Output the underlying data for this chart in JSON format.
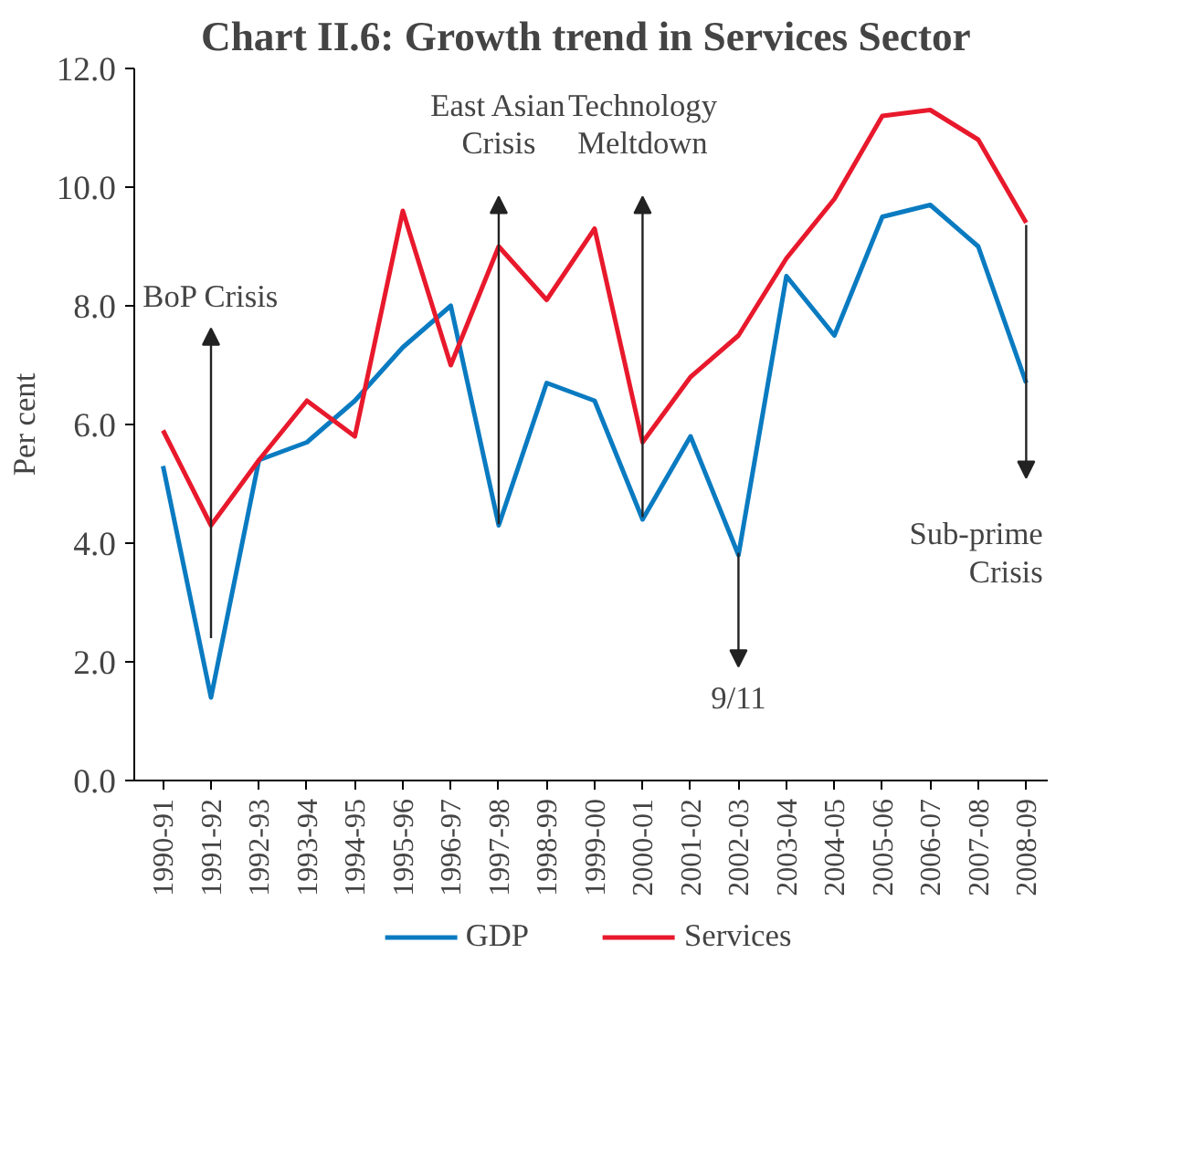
{
  "chart_data": {
    "type": "line",
    "title": "Chart  II.6: Growth trend in Services Sector",
    "ylabel": "Per cent",
    "categories": [
      "1990-91",
      "1991-92",
      "1992-93",
      "1993-94",
      "1994-95",
      "1995-96",
      "1996-97",
      "1997-98",
      "1998-99",
      "1999-00",
      "2000-01",
      "2001-02",
      "2002-03",
      "2003-04",
      "2004-05",
      "2005-06",
      "2006-07",
      "2007-08",
      "2008-09"
    ],
    "series": [
      {
        "name": "GDP",
        "color": "#0a7bc1",
        "values": [
          5.3,
          1.4,
          5.4,
          5.7,
          6.4,
          7.3,
          8.0,
          4.3,
          6.7,
          6.4,
          4.4,
          5.8,
          3.8,
          8.5,
          7.5,
          9.5,
          9.7,
          9.0,
          6.7
        ]
      },
      {
        "name": "Services",
        "color": "#e8192c",
        "values": [
          5.9,
          4.3,
          5.4,
          6.4,
          5.8,
          9.6,
          7.0,
          9.0,
          8.1,
          9.3,
          5.7,
          6.8,
          7.5,
          8.8,
          9.8,
          11.2,
          11.3,
          10.8,
          9.4
        ]
      }
    ],
    "ylim": [
      0,
      12
    ],
    "yticks": [
      {
        "value": 0,
        "label": "0.0"
      },
      {
        "value": 2,
        "label": "2.0"
      },
      {
        "value": 4,
        "label": "4.0"
      },
      {
        "value": 6,
        "label": "6.0"
      },
      {
        "value": 8,
        "label": "8.0"
      },
      {
        "value": 10,
        "label": "10.0"
      },
      {
        "value": 12,
        "label": "12.0"
      }
    ],
    "annotations": [
      "BoP Crisis",
      "East Asian\nCrisis",
      "Technology\nMeltdown",
      "9/11",
      "Sub-prime\nCrisis"
    ],
    "grid": false,
    "legend": "bottom",
    "marker": "none",
    "line_style": "solid"
  }
}
